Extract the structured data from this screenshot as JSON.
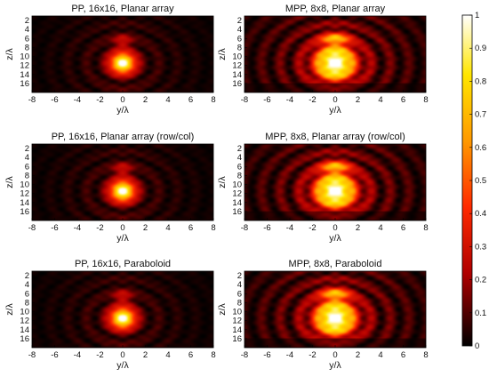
{
  "chart_data": [
    {
      "type": "heatmap",
      "title": "PP, 16x16, Planar array",
      "xlabel": "y/λ",
      "ylabel": "z/λ",
      "xlim": [
        -8,
        8
      ],
      "ylim": [
        1,
        18
      ],
      "x_ticks": [
        "-8",
        "-6",
        "-4",
        "-2",
        "0",
        "2",
        "4",
        "6",
        "8"
      ],
      "y_ticks": [
        "2",
        "4",
        "6",
        "8",
        "10",
        "12",
        "14",
        "16"
      ],
      "focal_peak": {
        "y": 0,
        "z": 11.5,
        "value": 1.0
      },
      "pattern": "narrow"
    },
    {
      "type": "heatmap",
      "title": "MPP, 8x8, Planar array",
      "xlabel": "y/λ",
      "ylabel": "z/λ",
      "xlim": [
        -8,
        8
      ],
      "ylim": [
        1,
        18
      ],
      "x_ticks": [
        "-8",
        "-6",
        "-4",
        "-2",
        "0",
        "2",
        "4",
        "6",
        "8"
      ],
      "y_ticks": [
        "2",
        "4",
        "6",
        "8",
        "10",
        "12",
        "14",
        "16"
      ],
      "focal_peak": {
        "y": 0,
        "z": 11.5,
        "value": 1.0
      },
      "pattern": "wide"
    },
    {
      "type": "heatmap",
      "title": "PP, 16x16, Planar array (row/col)",
      "xlabel": "y/λ",
      "ylabel": "z/λ",
      "xlim": [
        -8,
        8
      ],
      "ylim": [
        1,
        18
      ],
      "x_ticks": [
        "-8",
        "-6",
        "-4",
        "-2",
        "0",
        "2",
        "4",
        "6",
        "8"
      ],
      "y_ticks": [
        "2",
        "4",
        "6",
        "8",
        "10",
        "12",
        "14",
        "16"
      ],
      "focal_peak": {
        "y": 0,
        "z": 11.5,
        "value": 1.0
      },
      "pattern": "narrow"
    },
    {
      "type": "heatmap",
      "title": "MPP, 8x8, Planar array (row/col)",
      "xlabel": "y/λ",
      "ylabel": "z/λ",
      "xlim": [
        -8,
        8
      ],
      "ylim": [
        1,
        18
      ],
      "x_ticks": [
        "-8",
        "-6",
        "-4",
        "-2",
        "0",
        "2",
        "4",
        "6",
        "8"
      ],
      "y_ticks": [
        "2",
        "4",
        "6",
        "8",
        "10",
        "12",
        "14",
        "16"
      ],
      "focal_peak": {
        "y": 0,
        "z": 11.5,
        "value": 1.0
      },
      "pattern": "wide"
    },
    {
      "type": "heatmap",
      "title": "PP, 16x16, Paraboloid",
      "xlabel": "y/λ",
      "ylabel": "z/λ",
      "xlim": [
        -8,
        8
      ],
      "ylim": [
        1,
        18
      ],
      "x_ticks": [
        "-8",
        "-6",
        "-4",
        "-2",
        "0",
        "2",
        "4",
        "6",
        "8"
      ],
      "y_ticks": [
        "2",
        "4",
        "6",
        "8",
        "10",
        "12",
        "14",
        "16"
      ],
      "focal_peak": {
        "y": 0,
        "z": 11.5,
        "value": 1.0
      },
      "pattern": "narrow"
    },
    {
      "type": "heatmap",
      "title": "MPP, 8x8, Paraboloid",
      "xlabel": "y/λ",
      "ylabel": "z/λ",
      "xlim": [
        -8,
        8
      ],
      "ylim": [
        1,
        18
      ],
      "x_ticks": [
        "-8",
        "-6",
        "-4",
        "-2",
        "0",
        "2",
        "4",
        "6",
        "8"
      ],
      "y_ticks": [
        "2",
        "4",
        "6",
        "8",
        "10",
        "12",
        "14",
        "16"
      ],
      "focal_peak": {
        "y": 0,
        "z": 11.5,
        "value": 1.0
      },
      "pattern": "wide"
    }
  ],
  "colorbar": {
    "range": [
      0,
      1
    ],
    "ticks": [
      "0",
      "0.1",
      "0.2",
      "0.3",
      "0.4",
      "0.5",
      "0.6",
      "0.7",
      "0.8",
      "0.9",
      "1"
    ],
    "colormap": "hot",
    "colormap_stops": [
      "#000000",
      "#b00000",
      "#ff2a00",
      "#ff9900",
      "#ffe600",
      "#ffffff"
    ]
  }
}
